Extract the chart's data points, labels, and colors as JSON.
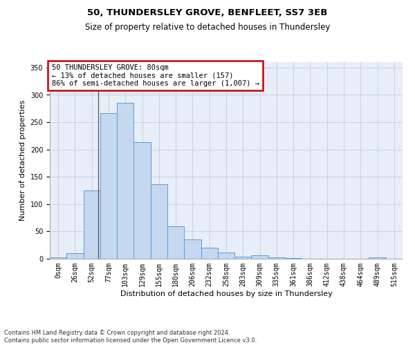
{
  "title1": "50, THUNDERSLEY GROVE, BENFLEET, SS7 3EB",
  "title2": "Size of property relative to detached houses in Thundersley",
  "xlabel": "Distribution of detached houses by size in Thundersley",
  "ylabel": "Number of detached properties",
  "bar_labels": [
    "0sqm",
    "26sqm",
    "52sqm",
    "77sqm",
    "103sqm",
    "129sqm",
    "155sqm",
    "180sqm",
    "206sqm",
    "232sqm",
    "258sqm",
    "283sqm",
    "309sqm",
    "335sqm",
    "361sqm",
    "386sqm",
    "412sqm",
    "438sqm",
    "464sqm",
    "489sqm",
    "515sqm"
  ],
  "bar_values": [
    2,
    10,
    125,
    267,
    285,
    213,
    136,
    60,
    36,
    20,
    12,
    4,
    6,
    3,
    1,
    0,
    0,
    0,
    0,
    2,
    0
  ],
  "bar_color": "#c5d8f0",
  "bar_edge_color": "#5b9bd5",
  "annotation_box_text": "50 THUNDERSLEY GROVE: 80sqm\n← 13% of detached houses are smaller (157)\n86% of semi-detached houses are larger (1,007) →",
  "annotation_box_color": "#ffffff",
  "annotation_box_edge_color": "#cc0000",
  "vline_x": 2.88,
  "ylim": [
    0,
    360
  ],
  "yticks": [
    0,
    50,
    100,
    150,
    200,
    250,
    300,
    350
  ],
  "grid_color": "#c8d4e8",
  "bg_color": "#e8eef8",
  "footnote": "Contains HM Land Registry data © Crown copyright and database right 2024.\nContains public sector information licensed under the Open Government Licence v3.0.",
  "title1_fontsize": 9.5,
  "title2_fontsize": 8.5,
  "xlabel_fontsize": 8,
  "ylabel_fontsize": 8,
  "tick_fontsize": 7,
  "footnote_fontsize": 6,
  "annot_fontsize": 7.5
}
